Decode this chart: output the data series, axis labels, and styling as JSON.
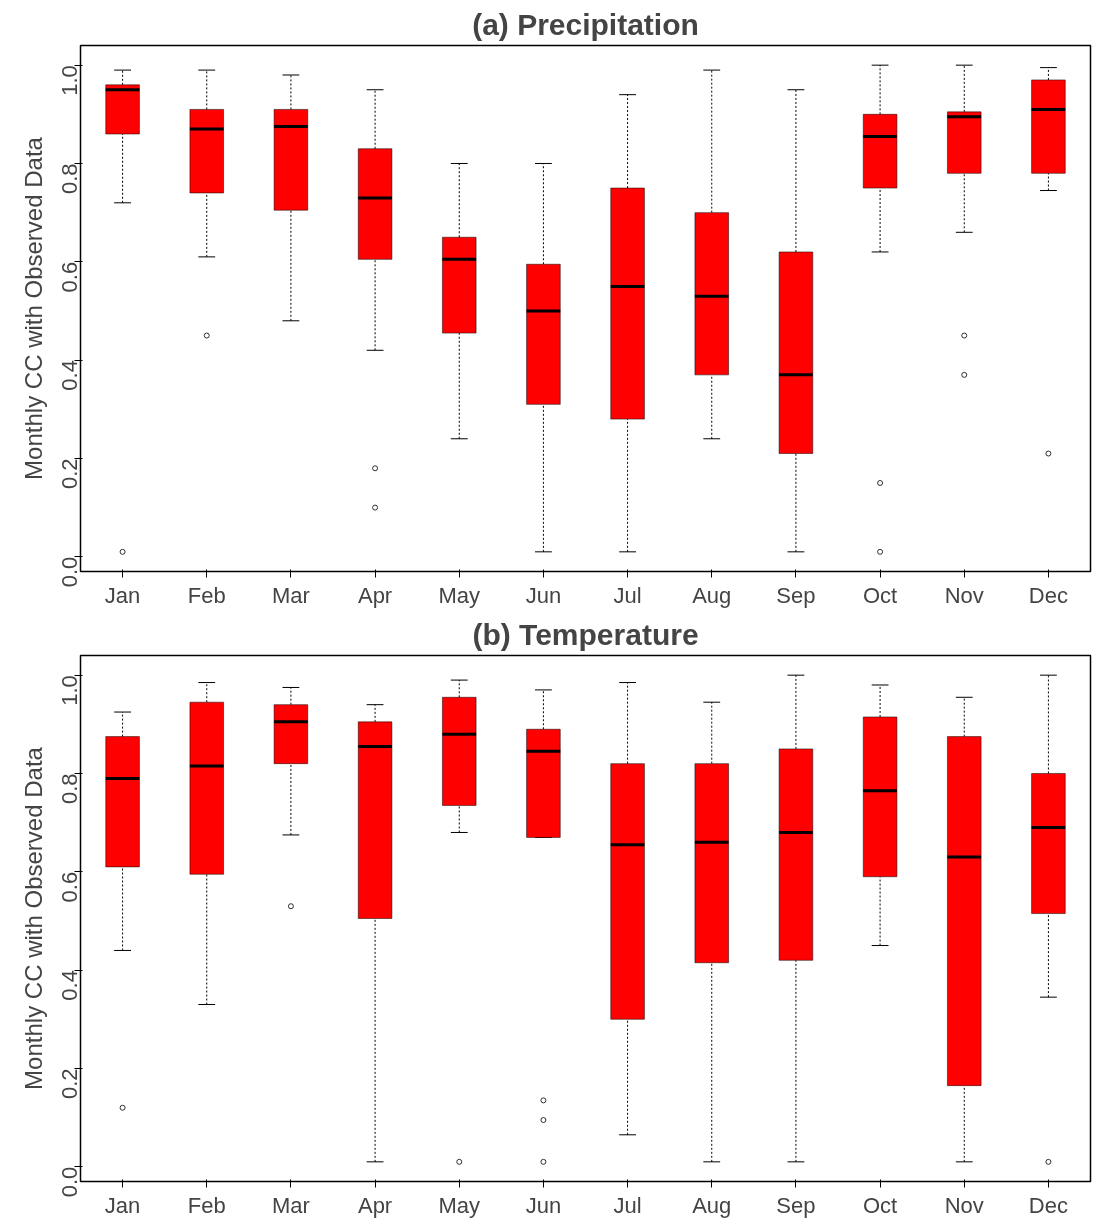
{
  "chart_data": [
    {
      "type": "box",
      "title": "(a) Precipitation",
      "ylabel": "Monthly CC with Observed Data",
      "categories": [
        "Jan",
        "Feb",
        "Mar",
        "Apr",
        "May",
        "Jun",
        "Jul",
        "Aug",
        "Sep",
        "Oct",
        "Nov",
        "Dec"
      ],
      "ylim": [
        -0.03,
        1.04
      ],
      "yticks": [
        {
          "value": 0,
          "label": "0.0"
        },
        {
          "value": 0.2,
          "label": "0.2"
        },
        {
          "value": 0.4,
          "label": "0.4"
        },
        {
          "value": 0.6,
          "label": "0.6"
        },
        {
          "value": 0.8,
          "label": "0.8"
        },
        {
          "value": 1,
          "label": "1.0"
        }
      ],
      "series": [
        {
          "color": "#ff0000",
          "boxes": [
            {
              "low": 0.72,
              "q1": 0.86,
              "median": 0.95,
              "q3": 0.96,
              "high": 0.99,
              "outliers": [
                0.01
              ]
            },
            {
              "low": 0.61,
              "q1": 0.74,
              "median": 0.87,
              "q3": 0.91,
              "high": 0.99,
              "outliers": [
                0.45
              ]
            },
            {
              "low": 0.48,
              "q1": 0.705,
              "median": 0.875,
              "q3": 0.91,
              "high": 0.98
            },
            {
              "low": 0.42,
              "q1": 0.605,
              "median": 0.73,
              "q3": 0.83,
              "high": 0.95,
              "outliers": [
                0.18,
                0.1
              ]
            },
            {
              "low": 0.24,
              "q1": 0.455,
              "median": 0.605,
              "q3": 0.65,
              "high": 0.8
            },
            {
              "low": 0.01,
              "q1": 0.31,
              "median": 0.5,
              "q3": 0.595,
              "high": 0.8
            },
            {
              "low": 0.01,
              "q1": 0.28,
              "median": 0.55,
              "q3": 0.75,
              "high": 0.94
            },
            {
              "low": 0.24,
              "q1": 0.37,
              "median": 0.53,
              "q3": 0.7,
              "high": 0.99
            },
            {
              "low": 0.01,
              "q1": 0.21,
              "median": 0.37,
              "q3": 0.62,
              "high": 0.95
            },
            {
              "low": 0.62,
              "q1": 0.75,
              "median": 0.855,
              "q3": 0.9,
              "high": 1.0,
              "outliers": [
                0.15,
                0.01
              ]
            },
            {
              "low": 0.66,
              "q1": 0.78,
              "median": 0.895,
              "q3": 0.905,
              "high": 1.0,
              "outliers": [
                0.45,
                0.37
              ]
            },
            {
              "low": 0.745,
              "q1": 0.78,
              "median": 0.91,
              "q3": 0.97,
              "high": 0.995,
              "outliers": [
                0.21
              ]
            }
          ]
        }
      ]
    },
    {
      "type": "box",
      "title": "(b) Temperature",
      "ylabel": "Monthly CC with Observed Data",
      "categories": [
        "Jan",
        "Feb",
        "Mar",
        "Apr",
        "May",
        "Jun",
        "Jul",
        "Aug",
        "Sep",
        "Oct",
        "Nov",
        "Dec"
      ],
      "ylim": [
        -0.03,
        1.04
      ],
      "yticks": [
        {
          "value": 0,
          "label": "0.0"
        },
        {
          "value": 0.2,
          "label": "0.2"
        },
        {
          "value": 0.4,
          "label": "0.4"
        },
        {
          "value": 0.6,
          "label": "0.6"
        },
        {
          "value": 0.8,
          "label": "0.8"
        },
        {
          "value": 1,
          "label": "1.0"
        }
      ],
      "series": [
        {
          "color": "#ff0000",
          "boxes": [
            {
              "low": 0.44,
              "q1": 0.61,
              "median": 0.79,
              "q3": 0.875,
              "high": 0.925,
              "outliers": [
                0.12
              ]
            },
            {
              "low": 0.33,
              "q1": 0.595,
              "median": 0.815,
              "q3": 0.945,
              "high": 0.985
            },
            {
              "low": 0.675,
              "q1": 0.82,
              "median": 0.905,
              "q3": 0.94,
              "high": 0.975,
              "outliers": [
                0.53
              ]
            },
            {
              "low": 0.01,
              "q1": 0.505,
              "median": 0.855,
              "q3": 0.905,
              "high": 0.94
            },
            {
              "low": 0.68,
              "q1": 0.735,
              "median": 0.88,
              "q3": 0.955,
              "high": 0.99,
              "outliers": [
                0.01
              ]
            },
            {
              "low": 0.67,
              "q1": 0.67,
              "median": 0.845,
              "q3": 0.89,
              "high": 0.97,
              "outliers": [
                0.135,
                0.095,
                0.01
              ]
            },
            {
              "low": 0.065,
              "q1": 0.3,
              "median": 0.655,
              "q3": 0.82,
              "high": 0.985
            },
            {
              "low": 0.01,
              "q1": 0.415,
              "median": 0.66,
              "q3": 0.82,
              "high": 0.945
            },
            {
              "low": 0.01,
              "q1": 0.42,
              "median": 0.68,
              "q3": 0.85,
              "high": 1.0
            },
            {
              "low": 0.45,
              "q1": 0.59,
              "median": 0.765,
              "q3": 0.915,
              "high": 0.98
            },
            {
              "low": 0.01,
              "q1": 0.165,
              "median": 0.63,
              "q3": 0.875,
              "high": 0.955
            },
            {
              "low": 0.345,
              "q1": 0.515,
              "median": 0.69,
              "q3": 0.8,
              "high": 1.0,
              "outliers": [
                0.01
              ]
            }
          ]
        }
      ]
    }
  ]
}
